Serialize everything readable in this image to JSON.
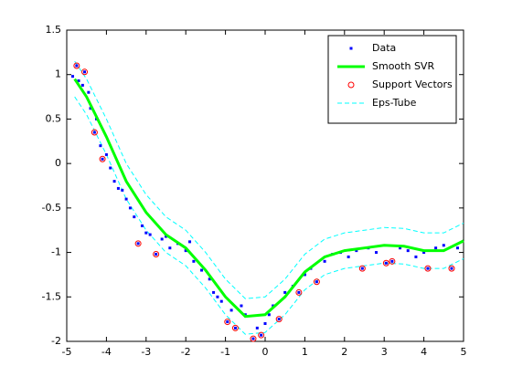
{
  "chart_data": {
    "type": "line",
    "xlim": [
      -5,
      5
    ],
    "ylim": [
      -2,
      1.5
    ],
    "xticks": [
      -5,
      -4,
      -3,
      -2,
      -1,
      0,
      1,
      2,
      3,
      4,
      5
    ],
    "yticks": [
      -2,
      -1.5,
      -1,
      -0.5,
      0,
      0.5,
      1,
      1.5
    ],
    "legend": "top-right",
    "series": [
      {
        "name": "Data",
        "color": "#0000ff",
        "style": "dots",
        "x": [
          -4.85,
          -4.75,
          -4.7,
          -4.6,
          -4.55,
          -4.45,
          -4.4,
          -4.3,
          -4.25,
          -4.15,
          -4.1,
          -4.0,
          -3.9,
          -3.8,
          -3.7,
          -3.6,
          -3.5,
          -3.4,
          -3.3,
          -3.2,
          -3.1,
          -3.0,
          -2.9,
          -2.75,
          -2.6,
          -2.5,
          -2.4,
          -2.2,
          -2.0,
          -1.9,
          -1.8,
          -1.6,
          -1.4,
          -1.3,
          -1.2,
          -1.1,
          -0.95,
          -0.85,
          -0.75,
          -0.6,
          -0.5,
          -0.3,
          -0.2,
          -0.1,
          0.0,
          0.1,
          0.2,
          0.35,
          0.5,
          0.7,
          0.85,
          1.0,
          1.15,
          1.3,
          1.5,
          1.7,
          1.9,
          2.1,
          2.3,
          2.45,
          2.6,
          2.8,
          3.05,
          3.2,
          3.4,
          3.6,
          3.8,
          4.0,
          4.1,
          4.3,
          4.5,
          4.7,
          4.85
        ],
        "values": [
          0.98,
          1.1,
          0.93,
          0.88,
          1.03,
          0.8,
          0.62,
          0.35,
          0.5,
          0.2,
          0.05,
          0.1,
          -0.05,
          -0.2,
          -0.28,
          -0.3,
          -0.4,
          -0.5,
          -0.6,
          -0.9,
          -0.7,
          -0.78,
          -0.8,
          -1.02,
          -0.85,
          -0.82,
          -0.95,
          -0.9,
          -0.98,
          -0.88,
          -1.1,
          -1.2,
          -1.3,
          -1.45,
          -1.5,
          -1.55,
          -1.78,
          -1.65,
          -1.85,
          -1.6,
          -1.7,
          -1.97,
          -1.85,
          -1.93,
          -1.8,
          -1.7,
          -1.6,
          -1.75,
          -1.45,
          -1.38,
          -1.45,
          -1.25,
          -1.18,
          -1.33,
          -1.1,
          -1.02,
          -1.0,
          -1.05,
          -0.98,
          -1.18,
          -0.95,
          -1.0,
          -1.12,
          -1.1,
          -0.95,
          -0.98,
          -1.05,
          -1.0,
          -1.18,
          -0.95,
          -0.92,
          -1.18,
          -0.95
        ]
      },
      {
        "name": "Smooth SVR",
        "color": "#00ff00",
        "style": "line",
        "x": [
          -4.8,
          -4.5,
          -4,
          -3.5,
          -3,
          -2.5,
          -2,
          -1.5,
          -1,
          -0.5,
          0,
          0.5,
          1,
          1.5,
          2,
          2.5,
          3,
          3.5,
          4,
          4.5,
          5
        ],
        "values": [
          0.95,
          0.75,
          0.3,
          -0.2,
          -0.55,
          -0.8,
          -0.95,
          -1.2,
          -1.5,
          -1.72,
          -1.7,
          -1.5,
          -1.22,
          -1.05,
          -0.98,
          -0.95,
          -0.92,
          -0.93,
          -0.98,
          -0.98,
          -0.87
        ]
      },
      {
        "name": "Support Vectors",
        "color": "#ff0000",
        "style": "circles",
        "x": [
          -4.75,
          -4.55,
          -4.3,
          -4.1,
          -3.2,
          -2.75,
          -0.95,
          -0.75,
          -0.3,
          -0.1,
          0.35,
          0.85,
          1.3,
          2.45,
          3.05,
          3.2,
          4.1,
          4.7
        ],
        "values": [
          1.1,
          1.03,
          0.35,
          0.05,
          -0.9,
          -1.02,
          -1.78,
          -1.85,
          -1.97,
          -1.93,
          -1.75,
          -1.45,
          -1.33,
          -1.18,
          -1.12,
          -1.1,
          -1.18,
          -1.18
        ]
      },
      {
        "name": "Eps-Tube",
        "color": "#00ffff",
        "style": "dashed",
        "x": [
          -4.8,
          -4.5,
          -4,
          -3.5,
          -3,
          -2.5,
          -2,
          -1.5,
          -1,
          -0.5,
          0,
          0.5,
          1,
          1.5,
          2,
          2.5,
          3,
          3.5,
          4,
          4.5,
          5
        ],
        "values": [
          1.15,
          0.95,
          0.5,
          0.0,
          -0.35,
          -0.6,
          -0.75,
          -1.0,
          -1.3,
          -1.52,
          -1.5,
          -1.3,
          -1.02,
          -0.85,
          -0.78,
          -0.75,
          -0.72,
          -0.73,
          -0.78,
          -0.78,
          -0.67
        ],
        "lower_values": [
          0.75,
          0.55,
          0.1,
          -0.4,
          -0.75,
          -1.0,
          -1.15,
          -1.4,
          -1.7,
          -1.92,
          -1.9,
          -1.7,
          -1.42,
          -1.25,
          -1.18,
          -1.15,
          -1.12,
          -1.13,
          -1.18,
          -1.18,
          -1.07
        ]
      }
    ]
  }
}
